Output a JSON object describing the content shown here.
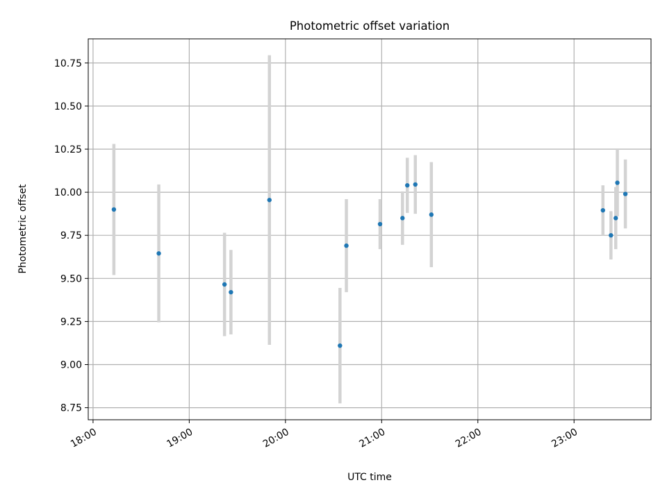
{
  "chart_data": {
    "type": "scatter",
    "title": "Photometric offset variation",
    "xlabel": "UTC time",
    "ylabel": "Photometric offset",
    "x_ticks": [
      "18:00",
      "19:00",
      "20:00",
      "21:00",
      "22:00",
      "23:00"
    ],
    "y_ticks": [
      "8.75",
      "9.00",
      "9.25",
      "9.50",
      "9.75",
      "10.00",
      "10.25",
      "10.50",
      "10.75"
    ],
    "xlim": [
      "17:57",
      "23:48"
    ],
    "ylim": [
      8.68,
      10.89
    ],
    "grid": true,
    "points": [
      {
        "time": "18:13",
        "y": 9.9,
        "err": 0.38
      },
      {
        "time": "18:41",
        "y": 9.645,
        "err": 0.4
      },
      {
        "time": "19:22",
        "y": 9.465,
        "err": 0.3
      },
      {
        "time": "19:26",
        "y": 9.42,
        "err": 0.245
      },
      {
        "time": "19:50",
        "y": 9.955,
        "err": 0.84
      },
      {
        "time": "20:34",
        "y": 9.11,
        "err": 0.335
      },
      {
        "time": "20:38",
        "y": 9.69,
        "err": 0.27
      },
      {
        "time": "20:59",
        "y": 9.815,
        "err": 0.145
      },
      {
        "time": "21:13",
        "y": 9.85,
        "err": 0.155
      },
      {
        "time": "21:16",
        "y": 10.04,
        "err": 0.16
      },
      {
        "time": "21:21",
        "y": 10.045,
        "err": 0.17
      },
      {
        "time": "21:31",
        "y": 9.87,
        "err": 0.305
      },
      {
        "time": "23:18",
        "y": 9.895,
        "err": 0.145
      },
      {
        "time": "23:23",
        "y": 9.75,
        "err": 0.14
      },
      {
        "time": "23:26",
        "y": 9.85,
        "err": 0.18
      },
      {
        "time": "23:27",
        "y": 10.055,
        "err": 0.195
      },
      {
        "time": "23:32",
        "y": 9.99,
        "err": 0.2
      }
    ],
    "colors": {
      "point": "#1f77b4",
      "errorbar": "#d3d3d3",
      "grid": "#b0b0b0",
      "axes": "#000000"
    }
  }
}
